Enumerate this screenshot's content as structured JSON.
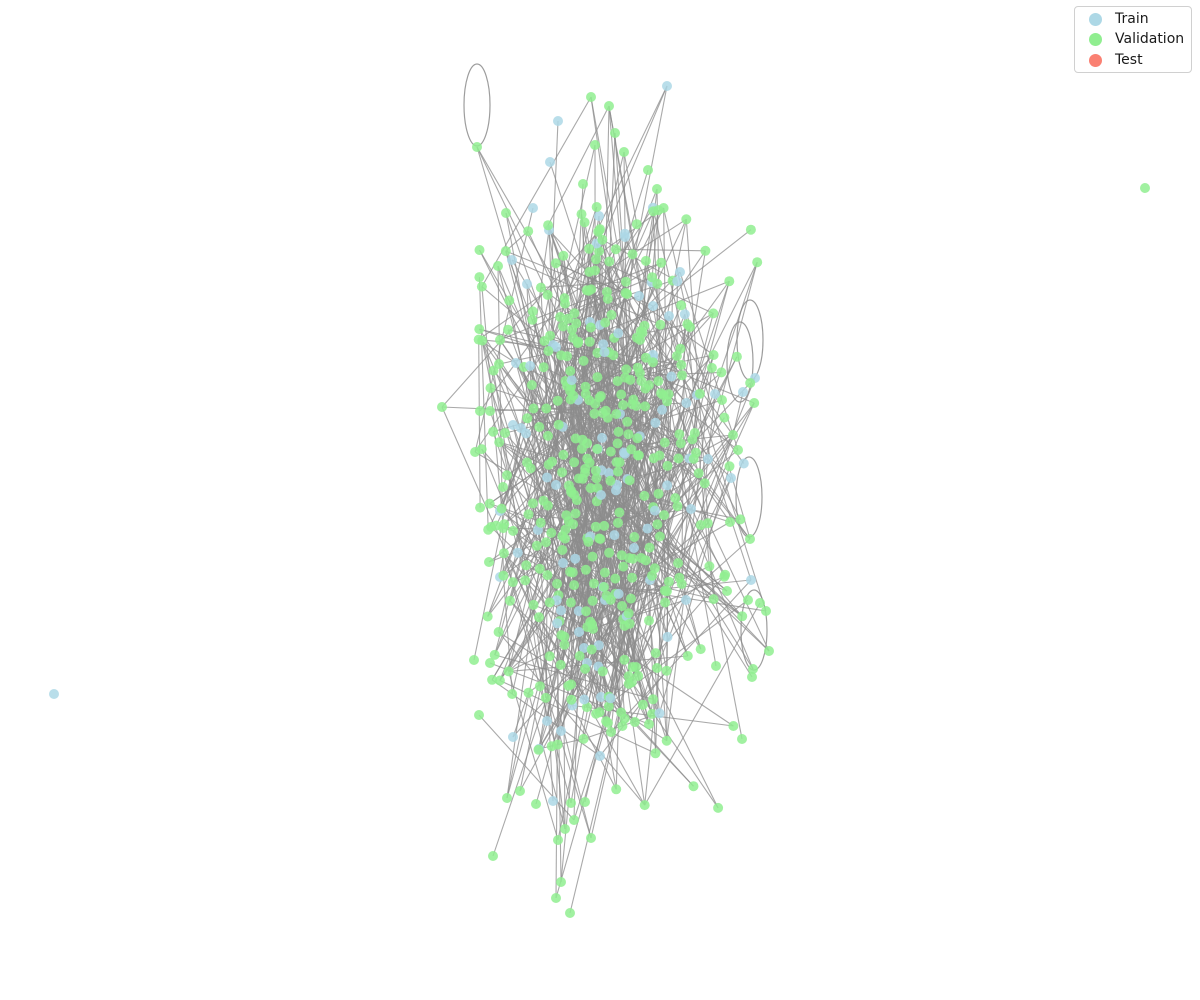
{
  "legend": {
    "items": [
      {
        "label": "Train",
        "color": "#add8e6"
      },
      {
        "label": "Validation",
        "color": "#90ee90"
      },
      {
        "label": "Test",
        "color": "#fa8072"
      }
    ]
  },
  "style": {
    "edge_color": "#8c8c8c",
    "node_colors": {
      "train": "#add8e6",
      "validation": "#90ee90",
      "test": "#fa8072"
    }
  }
}
